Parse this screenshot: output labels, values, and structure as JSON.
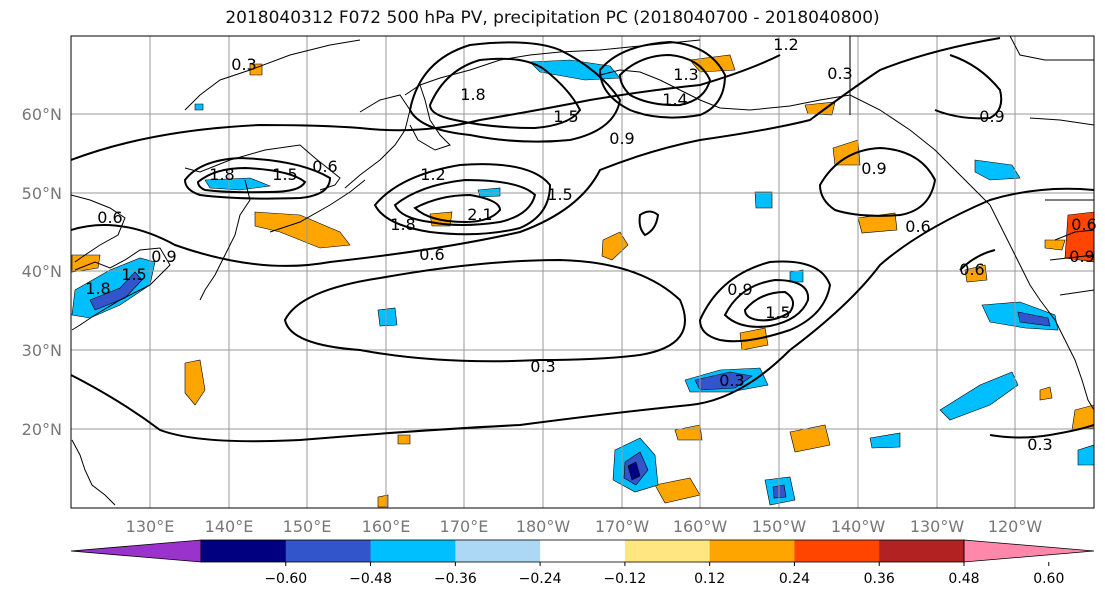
{
  "title": "2018040312 F072 500 hPa PV, precipitation PC (2018040700 - 2018040800)",
  "lat_labels": [
    "60°N",
    "50°N",
    "40°N",
    "30°N",
    "20°N"
  ],
  "lon_labels": [
    "130°E",
    "140°E",
    "150°E",
    "160°E",
    "170°E",
    "180°W",
    "170°W",
    "160°W",
    "150°W",
    "140°W",
    "130°W",
    "120°W"
  ],
  "contour_labels": [
    "0.3",
    "1.2",
    "0.3",
    "0.9",
    "1.8",
    "1.5",
    "0.9",
    "1.8",
    "1.5",
    "0.6",
    "1.2",
    "2.1",
    "1.8",
    "1.5",
    "0.6",
    "0.9",
    "0.6",
    "0.9",
    "1.5",
    "0.6",
    "0.3",
    "0.3",
    "0.3",
    "0.6",
    "1.8",
    "1.5",
    "0.9",
    "0.6",
    "0.9",
    "1.3",
    "1.4"
  ],
  "colorbar": {
    "ticks": [
      "−0.60",
      "−0.48",
      "−0.36",
      "−0.24",
      "−0.12",
      "0.12",
      "0.24",
      "0.36",
      "0.48",
      "0.60"
    ],
    "colors": [
      "#9933cc",
      "#000080",
      "#3355cc",
      "#00bfff",
      "#add8f5",
      "#ffffff",
      "#ffe680",
      "#ffa500",
      "#ff4500",
      "#b22222",
      "#ff88aa"
    ]
  }
}
